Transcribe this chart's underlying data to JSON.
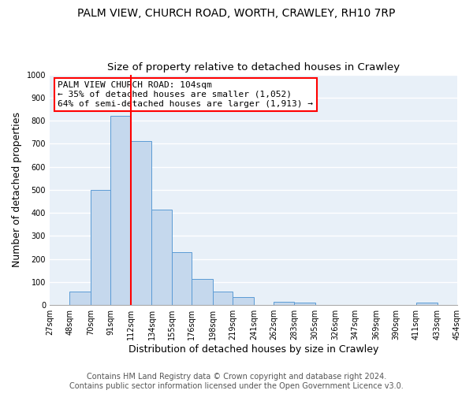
{
  "title": "PALM VIEW, CHURCH ROAD, WORTH, CRAWLEY, RH10 7RP",
  "subtitle": "Size of property relative to detached houses in Crawley",
  "xlabel": "Distribution of detached houses by size in Crawley",
  "ylabel": "Number of detached properties",
  "bar_color": "#c5d8ed",
  "bar_edge_color": "#5b9bd5",
  "bar_left_edges": [
    27,
    48,
    70,
    91,
    112,
    134,
    155,
    176,
    198,
    219,
    241,
    262,
    283,
    305,
    326,
    347,
    369,
    390,
    411,
    433
  ],
  "bar_widths": [
    21,
    22,
    21,
    21,
    22,
    21,
    21,
    22,
    21,
    22,
    21,
    21,
    22,
    21,
    21,
    22,
    21,
    21,
    22,
    21
  ],
  "bar_heights": [
    0,
    60,
    500,
    820,
    710,
    415,
    230,
    115,
    60,
    35,
    0,
    15,
    10,
    0,
    0,
    0,
    0,
    0,
    10,
    0
  ],
  "tick_labels": [
    "27sqm",
    "48sqm",
    "70sqm",
    "91sqm",
    "112sqm",
    "134sqm",
    "155sqm",
    "176sqm",
    "198sqm",
    "219sqm",
    "241sqm",
    "262sqm",
    "283sqm",
    "305sqm",
    "326sqm",
    "347sqm",
    "369sqm",
    "390sqm",
    "411sqm",
    "433sqm",
    "454sqm"
  ],
  "tick_positions": [
    27,
    48,
    70,
    91,
    112,
    134,
    155,
    176,
    198,
    219,
    241,
    262,
    283,
    305,
    326,
    347,
    369,
    390,
    411,
    433,
    454
  ],
  "red_line_x": 112,
  "ylim": [
    0,
    1000
  ],
  "yticks": [
    0,
    100,
    200,
    300,
    400,
    500,
    600,
    700,
    800,
    900,
    1000
  ],
  "annotation_title": "PALM VIEW CHURCH ROAD: 104sqm",
  "annotation_line1": "← 35% of detached houses are smaller (1,052)",
  "annotation_line2": "64% of semi-detached houses are larger (1,913) →",
  "footer_line1": "Contains HM Land Registry data © Crown copyright and database right 2024.",
  "footer_line2": "Contains public sector information licensed under the Open Government Licence v3.0.",
  "plot_bg_color": "#e8f0f8",
  "fig_bg_color": "#ffffff",
  "grid_color": "#ffffff",
  "title_fontsize": 10,
  "subtitle_fontsize": 9.5,
  "axis_label_fontsize": 9,
  "tick_fontsize": 7,
  "annotation_fontsize": 8,
  "footer_fontsize": 7
}
